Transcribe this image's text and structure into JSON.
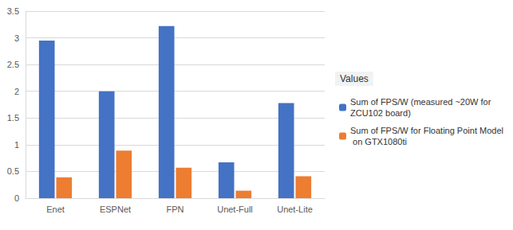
{
  "chart_data": {
    "type": "bar",
    "categories": [
      "Enet",
      "ESPNet",
      "FPN",
      "Unet-Full",
      "Unet-Lite"
    ],
    "series": [
      {
        "name": "Sum of FPS/W (measured ~20W for ZCU102 board)",
        "color": "#4472c4",
        "values": [
          2.95,
          2.0,
          3.22,
          0.67,
          1.78
        ]
      },
      {
        "name": "Sum of FPS/W for Floating Point Model on GTX1080ti",
        "color": "#ed7d31",
        "values": [
          0.39,
          0.89,
          0.57,
          0.14,
          0.41
        ]
      }
    ],
    "legend_title": "Values",
    "ylim": [
      0,
      3.5
    ],
    "yticks": [
      0,
      0.5,
      1,
      1.5,
      2,
      2.5,
      3,
      3.5
    ],
    "grid": true,
    "legend": "right"
  }
}
